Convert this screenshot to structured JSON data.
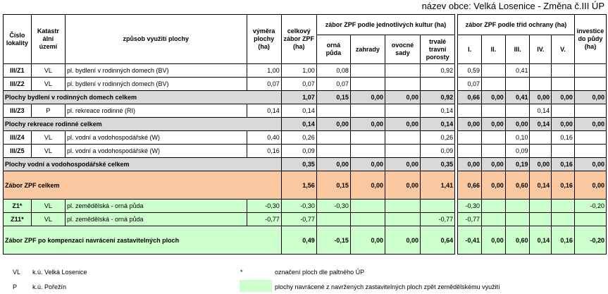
{
  "title": "název obce: Velká Losenice - Změna č.III ÚP",
  "header": {
    "cislo_lokality": "Číslo lokality",
    "katastralni_uzemi": "Katastr ální území",
    "zpusob": "způsob využití plochy",
    "vymera": "výměra plochy (ha)",
    "celkovy": "celkový zábor ZPF (ha)",
    "kultury_group": "zábor ZPF podle jednotlivých kultur (ha)",
    "kultury": [
      "orná půda",
      "zahrady",
      "ovocné sady",
      "trvalé travní porosty"
    ],
    "ochrana_group": "zábor ZPF podle tříd ochrany (ha)",
    "tridy": [
      "I.",
      "II.",
      "III.",
      "IV.",
      "V."
    ],
    "investice": "investice do půdy (ha)"
  },
  "rows": [
    {
      "type": "item",
      "id": "III/Z1",
      "ku": "VL",
      "zpusob": "pl. bydlení v rodinných domech (BV)",
      "vymera": "1,00",
      "celkem": "1,00",
      "kultury": [
        "0,08",
        "",
        "",
        "0,92"
      ],
      "tridy": [
        "0,59",
        "",
        "0,41",
        "",
        ""
      ],
      "investice": ""
    },
    {
      "type": "item",
      "id": "III/Z2",
      "ku": "VL",
      "zpusob": "pl. bydlení v rodinných domech (BV)",
      "vymera": "0,07",
      "celkem": "0,07",
      "kultury": [
        "0,07",
        "",
        "",
        ""
      ],
      "tridy": [
        "0,07",
        "",
        "",
        "",
        ""
      ],
      "investice": ""
    },
    {
      "type": "total",
      "label": "Plochy bydlení v rodinných domech celkem",
      "celkem": "1,07",
      "kultury": [
        "0,15",
        "0,00",
        "0,00",
        "0,92"
      ],
      "tridy": [
        "0,66",
        "0,00",
        "0,41",
        "0,00",
        "0,00"
      ],
      "investice": "0,00"
    },
    {
      "type": "item",
      "id": "III/Z3",
      "ku": "P",
      "zpusob": "pl. rekreace rodinné (RI)",
      "vymera": "0,14",
      "celkem": "0,14",
      "kultury": [
        "",
        "",
        "",
        "0,14"
      ],
      "tridy": [
        "",
        "",
        "",
        "0,14",
        ""
      ],
      "investice": ""
    },
    {
      "type": "total",
      "label": "Plochy rekreace rodinné celkem",
      "celkem": "0,14",
      "kultury": [
        "0,00",
        "0,00",
        "0,00",
        "0,14"
      ],
      "tridy": [
        "0,00",
        "0,00",
        "0,00",
        "0,14",
        "0,00"
      ],
      "investice": "0,00"
    },
    {
      "type": "item",
      "id": "III/Z4",
      "ku": "VL",
      "zpusob": "pl. vodní a vodohospodářské (W)",
      "vymera": "0,40",
      "celkem": "0,26",
      "kultury": [
        "",
        "",
        "",
        "0,26"
      ],
      "tridy": [
        "",
        "",
        "0,10",
        "",
        "0,16"
      ],
      "investice": ""
    },
    {
      "type": "item",
      "id": "III/Z5",
      "ku": "VL",
      "zpusob": "pl. vodní a vodohospodářské (W)",
      "vymera": "0,16",
      "celkem": "0,09",
      "kultury": [
        "",
        "",
        "",
        "0,09"
      ],
      "tridy": [
        "",
        "",
        "0,09",
        "",
        ""
      ],
      "investice": ""
    },
    {
      "type": "total",
      "label": "Plochy vodní a vodohospodářské celkem",
      "celkem": "0,35",
      "kultury": [
        "0,00",
        "0,00",
        "0,00",
        "0,35"
      ],
      "tridy": [
        "0,00",
        "0,00",
        "0,19",
        "0,00",
        "0,16"
      ],
      "investice": "0,00"
    },
    {
      "type": "orange",
      "label": "Zábor ZPF celkem",
      "celkem": "1,56",
      "kultury": [
        "0,15",
        "0,00",
        "0,00",
        "1,41"
      ],
      "tridy": [
        "0,66",
        "0,00",
        "0,60",
        "0,14",
        "0,16"
      ],
      "investice": "0,00"
    },
    {
      "type": "green",
      "id": "Z1*",
      "ku": "VL",
      "zpusob": "pl. zemědělská - orná půda",
      "vymera": "-0,30",
      "celkem": "-0,30",
      "kultury": [
        "-0,30",
        "",
        "",
        ""
      ],
      "tridy": [
        "-0,30",
        "",
        "",
        "",
        ""
      ],
      "investice": "-0,20"
    },
    {
      "type": "green",
      "id": "Z11*",
      "ku": "VL",
      "zpusob": "pl. zemědělská - orná půda",
      "vymera": "-0,77",
      "celkem": "-0,77",
      "kultury": [
        "",
        "",
        "",
        "-0,77"
      ],
      "tridy": [
        "-0,77",
        "",
        "",
        "",
        ""
      ],
      "investice": ""
    },
    {
      "type": "green2",
      "label": "Zábor ZPF po kompenzaci navrácení zastavitelných ploch",
      "celkem": "0,49",
      "kultury": [
        "-0,15",
        "0,00",
        "0,00",
        "0,64"
      ],
      "tridy": [
        "-0,41",
        "0,00",
        "0,60",
        "0,14",
        "0,16"
      ],
      "investice": "-0,20"
    }
  ],
  "legend": {
    "vl_code": "VL",
    "vl_text": "k.ú. Velká Losenice",
    "p_code": "P",
    "p_text": "k.ú. Pořežín",
    "star_code": "*",
    "star_text": "označení ploch dle paltného ÚP",
    "green_text": "plochy navrácené z navržených zastavitelných ploch zpět zemědělskému využití",
    "green_color": "#ccffcc"
  }
}
